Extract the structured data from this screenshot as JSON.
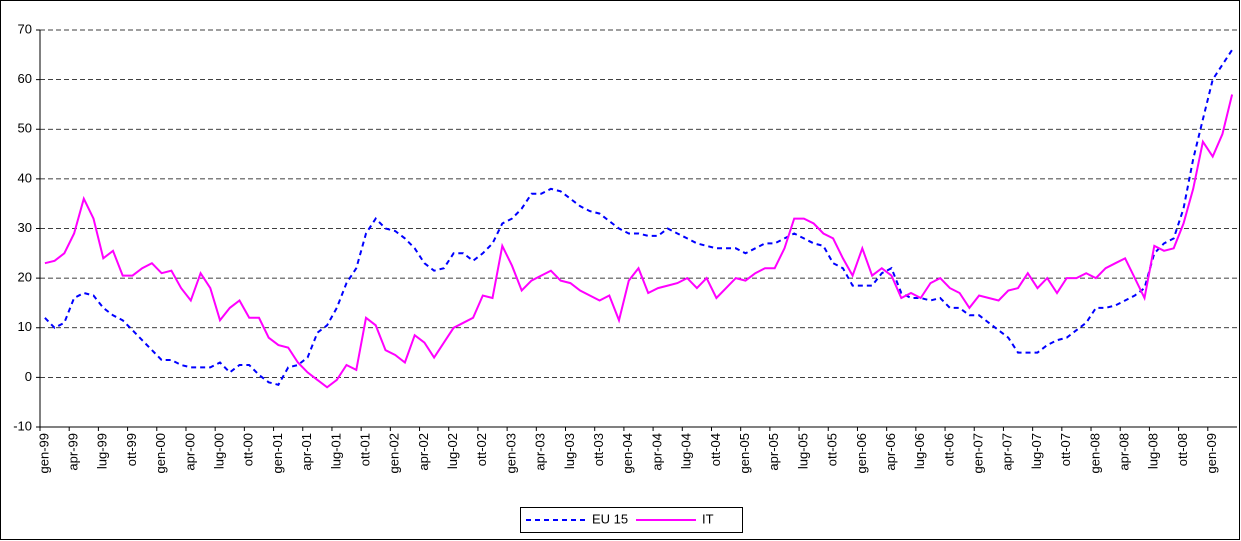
{
  "chart_data": {
    "type": "line",
    "categories": [
      "gen-99",
      null,
      null,
      "apr-99",
      null,
      null,
      "lug-99",
      null,
      null,
      "ott-99",
      null,
      null,
      "gen-00",
      null,
      null,
      "apr-00",
      null,
      null,
      "lug-00",
      null,
      null,
      "ott-00",
      null,
      null,
      "gen-01",
      null,
      null,
      "apr-01",
      null,
      null,
      "lug-01",
      null,
      null,
      "ott-01",
      null,
      null,
      "gen-02",
      null,
      null,
      "apr-02",
      null,
      null,
      "lug-02",
      null,
      null,
      "ott-02",
      null,
      null,
      "gen-03",
      null,
      null,
      "apr-03",
      null,
      null,
      "lug-03",
      null,
      null,
      "ott-03",
      null,
      null,
      "gen-04",
      null,
      null,
      "apr-04",
      null,
      null,
      "lug-04",
      null,
      null,
      "ott-04",
      null,
      null,
      "gen-05",
      null,
      null,
      "apr-05",
      null,
      null,
      "lug-05",
      null,
      null,
      "ott-05",
      null,
      null,
      "gen-06",
      null,
      null,
      "apr-06",
      null,
      null,
      "lug-06",
      null,
      null,
      "ott-06",
      null,
      null,
      "gen-07",
      null,
      null,
      "apr-07",
      null,
      null,
      "lug-07",
      null,
      null,
      "ott-07",
      null,
      null,
      "gen-08",
      null,
      null,
      "apr-08",
      null,
      null,
      "lug-08",
      null,
      null,
      "ott-08",
      null,
      null,
      "gen-09",
      null,
      null
    ],
    "series": [
      {
        "name": "EU 15",
        "color": "#0000ff",
        "dashed": true,
        "values": [
          12,
          10,
          11,
          16,
          17,
          16.5,
          14,
          12.5,
          11.5,
          9.5,
          7.5,
          5.5,
          3.5,
          3.5,
          2.5,
          2,
          2,
          2,
          3,
          1,
          2.5,
          2.5,
          0.5,
          -1,
          -1.5,
          2,
          2.5,
          4,
          9,
          10.5,
          14,
          19,
          22,
          29,
          32,
          30,
          29.5,
          28,
          26,
          23,
          21.5,
          22,
          25,
          25,
          23.5,
          25,
          27,
          31,
          32,
          34,
          37,
          37,
          38,
          37.5,
          36,
          34.5,
          33.5,
          33,
          31.5,
          30,
          29,
          29,
          28.5,
          28.5,
          30,
          29,
          28,
          27,
          26.5,
          26,
          26,
          26,
          25,
          26,
          27,
          27,
          28,
          29,
          28,
          27,
          26.5,
          23,
          22,
          18.5,
          18.5,
          18.5,
          21,
          22,
          17,
          16,
          16,
          15.5,
          16,
          14,
          14,
          12.5,
          12.5,
          11,
          9.5,
          8,
          5,
          5,
          5,
          6.5,
          7.5,
          8,
          9.5,
          11,
          14,
          14,
          14.5,
          15.5,
          16.5,
          18,
          25,
          27,
          28,
          34,
          44,
          52,
          60,
          63,
          66
        ]
      },
      {
        "name": "IT",
        "color": "#ff00ff",
        "dashed": false,
        "values": [
          23,
          23.5,
          25,
          29,
          36,
          32,
          24,
          25.5,
          20.5,
          20.5,
          22,
          23,
          21,
          21.5,
          18,
          15.5,
          21,
          18,
          11.5,
          14,
          15.5,
          12,
          12,
          8,
          6.5,
          6,
          3,
          1,
          -0.5,
          -2,
          -0.5,
          2.5,
          1.5,
          12,
          10.5,
          5.5,
          4.5,
          3,
          8.5,
          7,
          4,
          7,
          10,
          11,
          12,
          16.5,
          16,
          26.5,
          22.5,
          17.5,
          19.5,
          20.5,
          21.5,
          19.5,
          19,
          17.5,
          16.5,
          15.5,
          16.5,
          11.5,
          19.5,
          22,
          17,
          18,
          18.5,
          19,
          20,
          18,
          20,
          16,
          18,
          20,
          19.5,
          21,
          22,
          22,
          26,
          32,
          32,
          31,
          29,
          28,
          24,
          20.5,
          26,
          20.5,
          22,
          20.5,
          16,
          17,
          16,
          19,
          20,
          18,
          17,
          14,
          16.5,
          16,
          15.5,
          17.5,
          18,
          21,
          18,
          20,
          17,
          20,
          20,
          21,
          20,
          22,
          23,
          24,
          20,
          16,
          26.5,
          25.5,
          26,
          31,
          38,
          47.5,
          44.5,
          49,
          57
        ]
      }
    ],
    "ylim": [
      -10,
      70
    ],
    "yticks": [
      -10,
      0,
      10,
      20,
      30,
      40,
      50,
      60,
      70
    ],
    "grid": true,
    "legend": "bottom"
  }
}
